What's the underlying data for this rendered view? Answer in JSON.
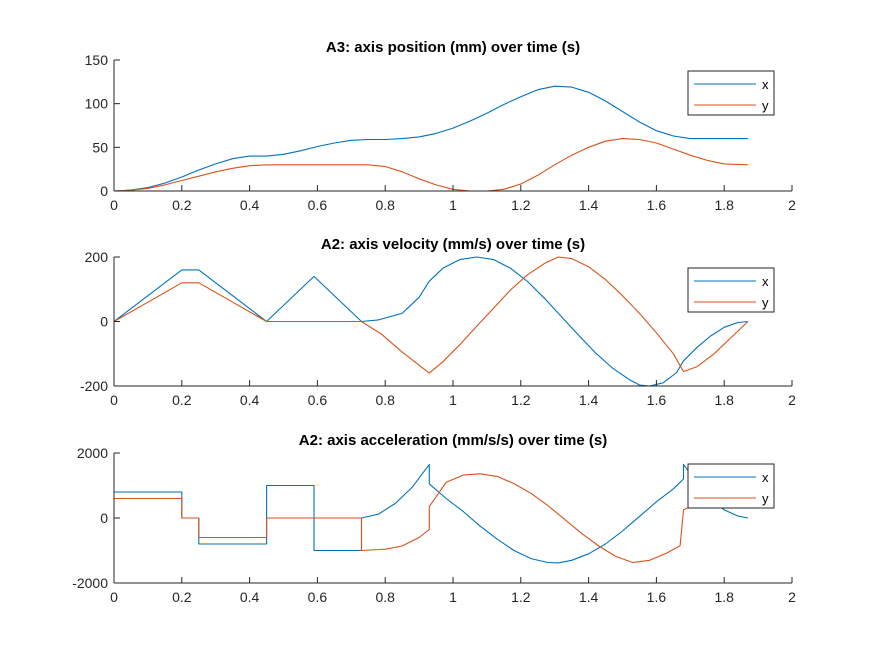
{
  "colors": {
    "x": "#0072BD",
    "y": "#D95319",
    "axis": "#262626"
  },
  "chart_data": [
    {
      "type": "line",
      "title": "A3: axis position (mm) over time (s)",
      "xlabel": "",
      "ylabel": "",
      "xlim": [
        0,
        2
      ],
      "ylim": [
        0,
        150
      ],
      "xticks": [
        0,
        0.2,
        0.4,
        0.6,
        0.8,
        1,
        1.2,
        1.4,
        1.6,
        1.8,
        2
      ],
      "xtick_labels": [
        "0",
        "0.2",
        "0.4",
        "0.6",
        "0.8",
        "1",
        "1.2",
        "1.4",
        "1.6",
        "1.8",
        "2"
      ],
      "yticks": [
        0,
        50,
        100,
        150
      ],
      "ytick_labels": [
        "0",
        "50",
        "100",
        "150"
      ],
      "legend": {
        "position": "top-right",
        "entries": [
          "x",
          "y"
        ]
      },
      "grid": false,
      "series": [
        {
          "name": "x",
          "color": "#0072BD",
          "x": [
            0,
            0.05,
            0.1,
            0.15,
            0.2,
            0.25,
            0.3,
            0.35,
            0.4,
            0.45,
            0.5,
            0.55,
            0.6,
            0.65,
            0.7,
            0.75,
            0.8,
            0.85,
            0.9,
            0.95,
            1.0,
            1.05,
            1.1,
            1.15,
            1.2,
            1.25,
            1.3,
            1.35,
            1.4,
            1.45,
            1.5,
            1.55,
            1.6,
            1.65,
            1.7,
            1.75,
            1.8,
            1.87
          ],
          "y": [
            0,
            1,
            4,
            9,
            16,
            24,
            31,
            37,
            40,
            40,
            42,
            46,
            51,
            55,
            58,
            59,
            59,
            60,
            62,
            66,
            72,
            80,
            89,
            99,
            108,
            116,
            120,
            119,
            113,
            103,
            91,
            79,
            69,
            63,
            60,
            60,
            60,
            60
          ]
        },
        {
          "name": "y",
          "color": "#D95319",
          "x": [
            0,
            0.05,
            0.1,
            0.15,
            0.2,
            0.25,
            0.3,
            0.35,
            0.4,
            0.45,
            0.5,
            0.55,
            0.6,
            0.65,
            0.7,
            0.75,
            0.8,
            0.85,
            0.9,
            0.95,
            1.0,
            1.05,
            1.1,
            1.15,
            1.2,
            1.25,
            1.3,
            1.35,
            1.4,
            1.45,
            1.5,
            1.55,
            1.6,
            1.65,
            1.7,
            1.75,
            1.8,
            1.87
          ],
          "y": [
            0,
            1,
            3,
            7,
            12,
            17,
            22,
            26,
            29,
            30,
            30,
            30,
            30,
            30,
            30,
            30,
            28,
            22,
            14,
            7,
            2,
            0,
            0,
            2,
            8,
            18,
            30,
            41,
            50,
            57,
            60,
            59,
            55,
            48,
            41,
            35,
            31,
            30
          ]
        }
      ]
    },
    {
      "type": "line",
      "title": "A2: axis velocity (mm/s) over time (s)",
      "xlabel": "",
      "ylabel": "",
      "xlim": [
        0,
        2
      ],
      "ylim": [
        -200,
        200
      ],
      "xticks": [
        0,
        0.2,
        0.4,
        0.6,
        0.8,
        1,
        1.2,
        1.4,
        1.6,
        1.8,
        2
      ],
      "xtick_labels": [
        "0",
        "0.2",
        "0.4",
        "0.6",
        "0.8",
        "1",
        "1.2",
        "1.4",
        "1.6",
        "1.8",
        "2"
      ],
      "yticks": [
        -200,
        0,
        200
      ],
      "ytick_labels": [
        "-200",
        "0",
        "200"
      ],
      "legend": {
        "position": "top-right",
        "entries": [
          "x",
          "y"
        ]
      },
      "grid": false,
      "series": [
        {
          "name": "x",
          "color": "#0072BD",
          "x": [
            0,
            0.2,
            0.25,
            0.45,
            0.59,
            0.73,
            0.78,
            0.85,
            0.9,
            0.93,
            0.97,
            1.02,
            1.07,
            1.12,
            1.17,
            1.22,
            1.27,
            1.32,
            1.37,
            1.42,
            1.47,
            1.52,
            1.55,
            1.58,
            1.62,
            1.66,
            1.68,
            1.72,
            1.76,
            1.8,
            1.84,
            1.87
          ],
          "y": [
            0,
            160,
            160,
            0,
            140,
            0,
            5,
            25,
            75,
            125,
            165,
            192,
            200,
            192,
            165,
            124,
            72,
            15,
            -42,
            -97,
            -144,
            -180,
            -197,
            -200,
            -190,
            -158,
            -122,
            -80,
            -45,
            -18,
            -3,
            0
          ]
        },
        {
          "name": "y",
          "color": "#D95319",
          "x": [
            0,
            0.2,
            0.25,
            0.45,
            0.73,
            0.79,
            0.85,
            0.93,
            0.97,
            1.02,
            1.07,
            1.12,
            1.17,
            1.22,
            1.27,
            1.31,
            1.35,
            1.4,
            1.45,
            1.5,
            1.55,
            1.6,
            1.65,
            1.68,
            1.72,
            1.77,
            1.82,
            1.87
          ],
          "y": [
            0,
            120,
            120,
            0,
            0,
            -40,
            -95,
            -160,
            -125,
            -72,
            -15,
            42,
            98,
            145,
            180,
            200,
            195,
            170,
            130,
            80,
            25,
            -35,
            -100,
            -155,
            -140,
            -100,
            -50,
            0
          ]
        }
      ]
    },
    {
      "type": "line",
      "title": "A2: axis acceleration (mm/s/s) over time (s)",
      "xlabel": "",
      "ylabel": "",
      "xlim": [
        0,
        2
      ],
      "ylim": [
        -2000,
        2000
      ],
      "xticks": [
        0,
        0.2,
        0.4,
        0.6,
        0.8,
        1,
        1.2,
        1.4,
        1.6,
        1.8,
        2
      ],
      "xtick_labels": [
        "0",
        "0.2",
        "0.4",
        "0.6",
        "0.8",
        "1",
        "1.2",
        "1.4",
        "1.6",
        "1.8",
        "2"
      ],
      "yticks": [
        -2000,
        0,
        2000
      ],
      "ytick_labels": [
        "-2000",
        "0",
        "2000"
      ],
      "legend": {
        "position": "top-right",
        "entries": [
          "x",
          "y"
        ]
      },
      "grid": false,
      "series": [
        {
          "name": "x",
          "color": "#0072BD",
          "x": [
            0,
            0.2,
            0.2,
            0.25,
            0.25,
            0.45,
            0.45,
            0.59,
            0.59,
            0.73,
            0.73,
            0.78,
            0.83,
            0.88,
            0.93,
            0.93,
            0.98,
            1.03,
            1.08,
            1.13,
            1.18,
            1.23,
            1.28,
            1.31,
            1.35,
            1.4,
            1.45,
            1.5,
            1.55,
            1.6,
            1.65,
            1.68,
            1.68,
            1.72,
            1.76,
            1.8,
            1.84,
            1.87
          ],
          "y": [
            800,
            800,
            0,
            0,
            -800,
            -800,
            1000,
            1000,
            -1000,
            -1000,
            0,
            120,
            450,
            950,
            1650,
            1050,
            600,
            200,
            -250,
            -650,
            -1000,
            -1250,
            -1370,
            -1380,
            -1300,
            -1100,
            -800,
            -400,
            50,
            500,
            900,
            1200,
            1650,
            1100,
            600,
            250,
            60,
            0
          ]
        },
        {
          "name": "y",
          "color": "#D95319",
          "x": [
            0,
            0.2,
            0.2,
            0.25,
            0.25,
            0.45,
            0.45,
            0.73,
            0.73,
            0.8,
            0.85,
            0.9,
            0.93,
            0.93,
            0.98,
            1.03,
            1.08,
            1.13,
            1.18,
            1.23,
            1.28,
            1.33,
            1.38,
            1.43,
            1.48,
            1.53,
            1.58,
            1.63,
            1.67,
            1.68,
            1.72,
            1.76,
            1.8,
            1.84,
            1.87
          ],
          "y": [
            600,
            600,
            0,
            0,
            -600,
            -600,
            0,
            0,
            -1000,
            -960,
            -860,
            -600,
            -350,
            350,
            1100,
            1320,
            1360,
            1280,
            1060,
            760,
            380,
            -50,
            -480,
            -860,
            -1180,
            -1370,
            -1300,
            -1080,
            -850,
            250,
            450,
            550,
            600,
            600,
            600
          ]
        }
      ]
    }
  ]
}
